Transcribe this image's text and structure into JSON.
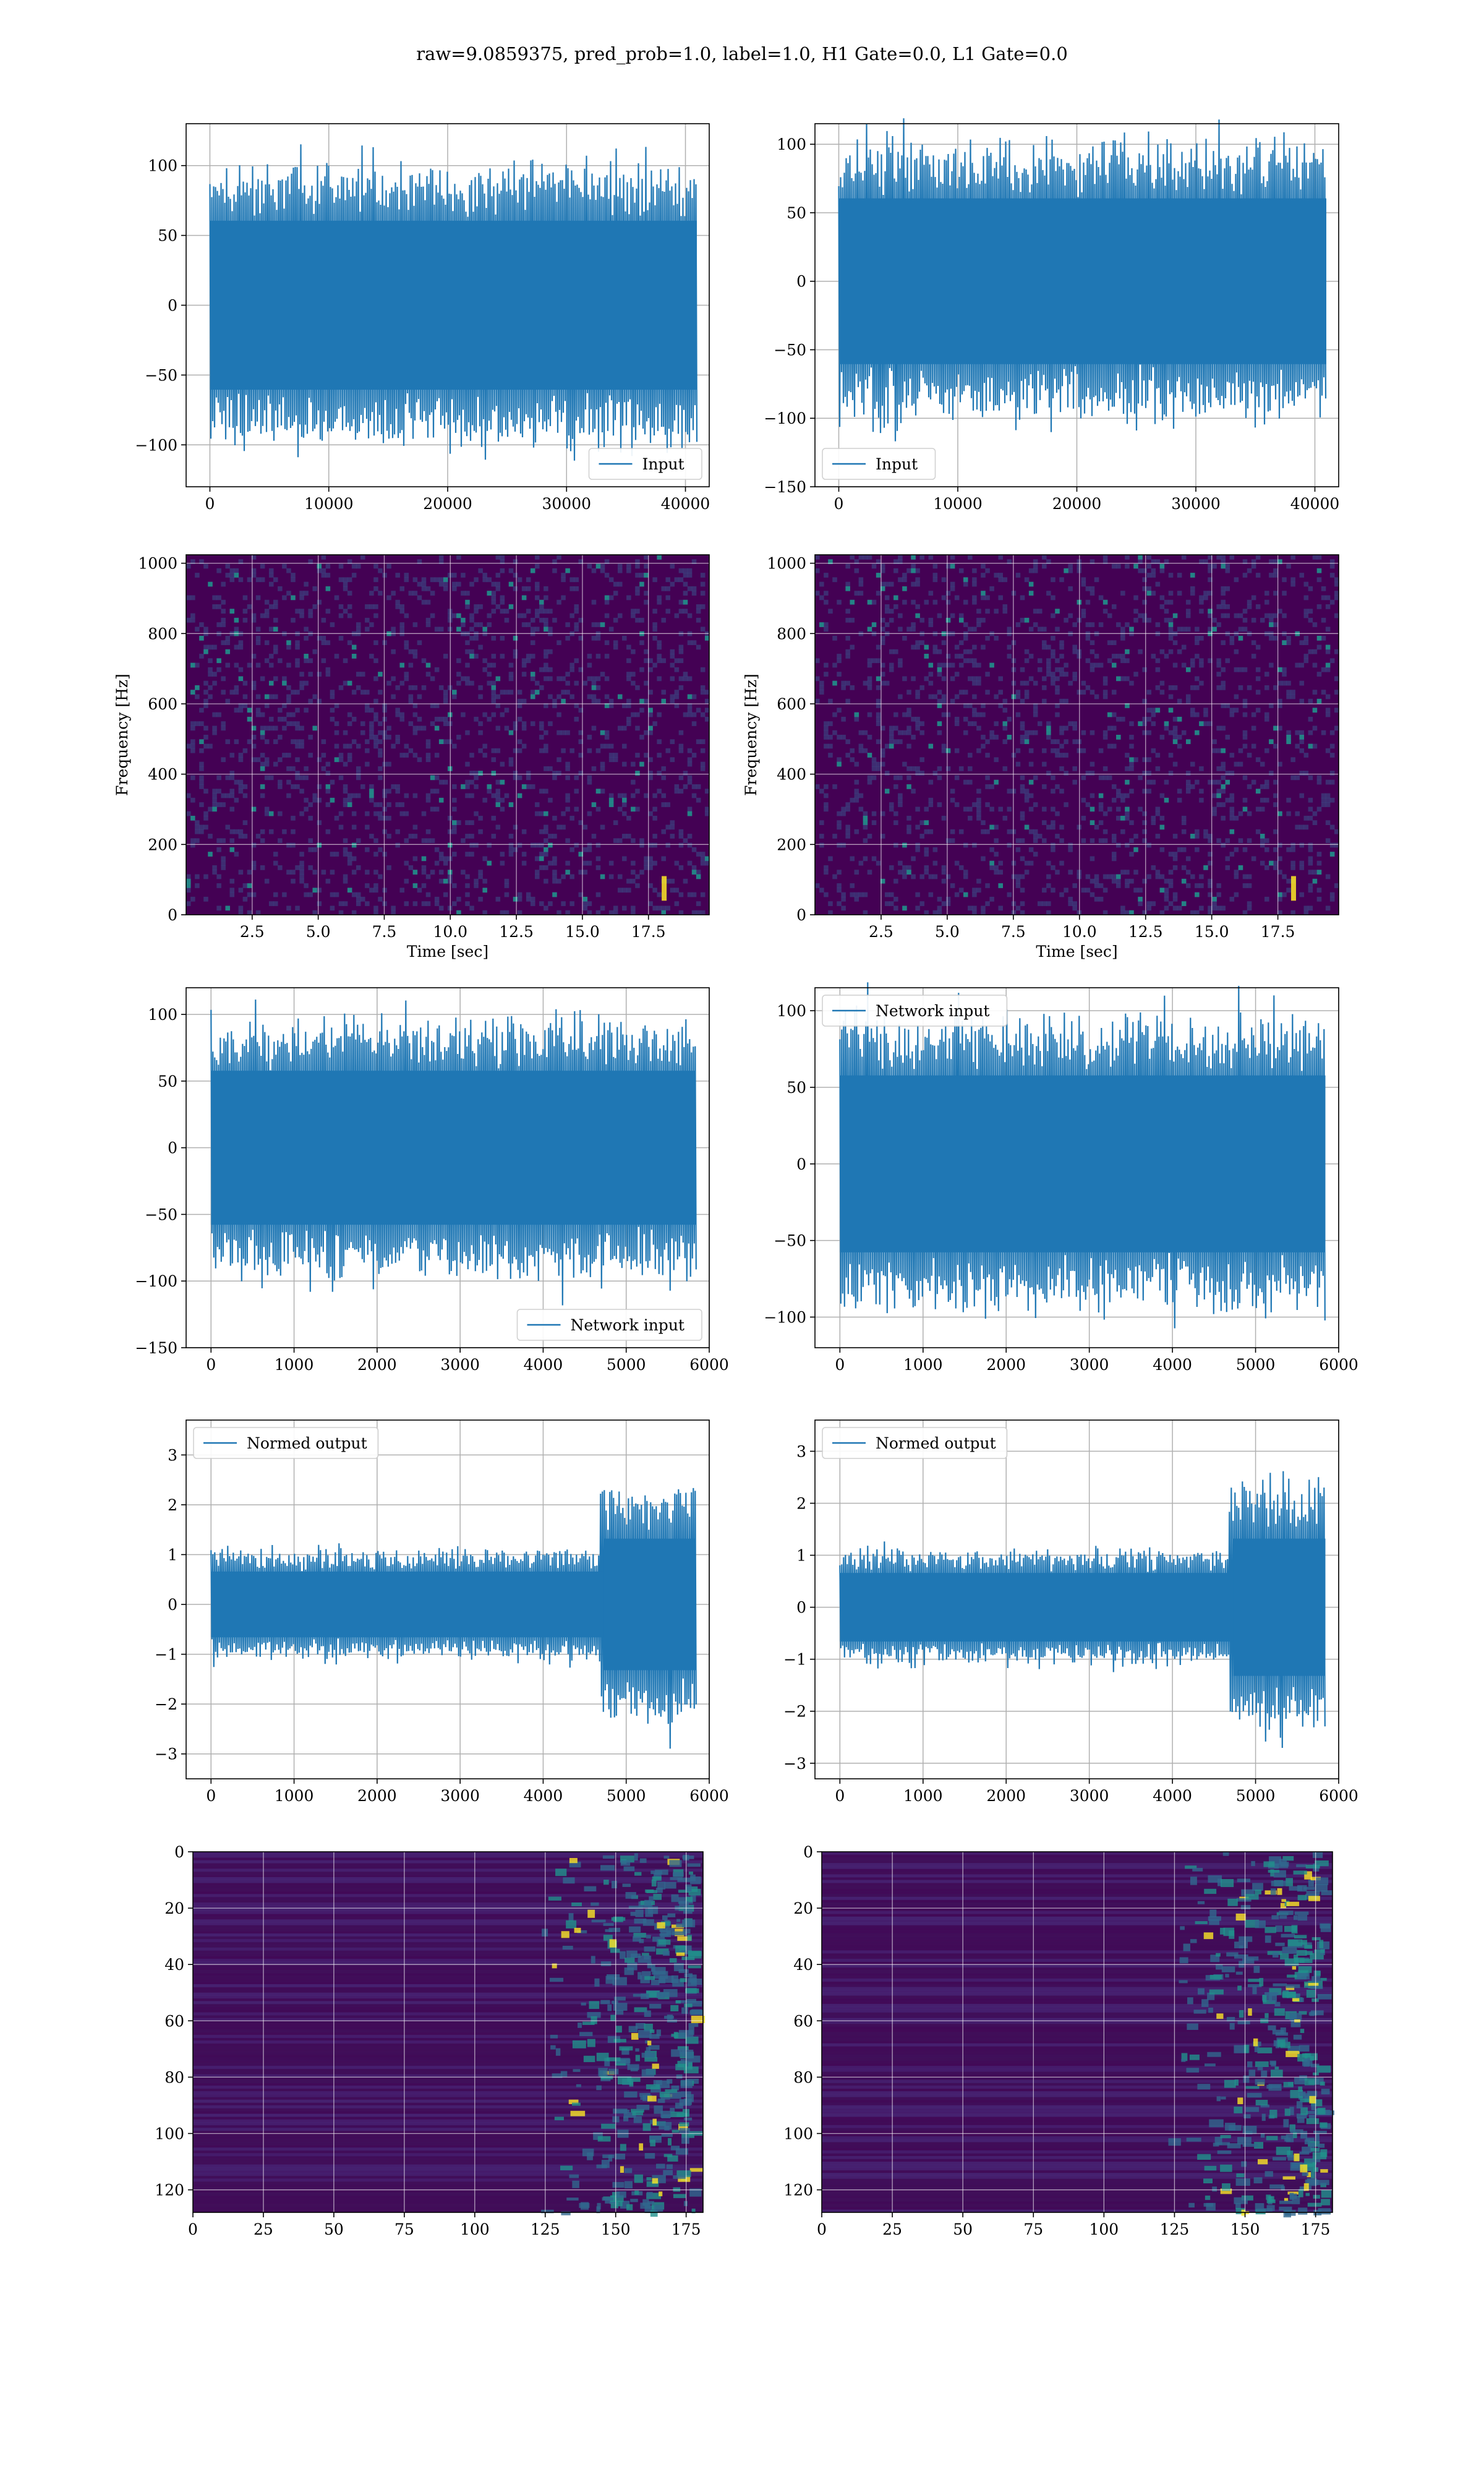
{
  "figure_title": "raw=9.0859375, pred_prob=1.0, label=1.0, H1 Gate=0.0, L1 Gate=0.0",
  "colors": {
    "line": "#1f77b4",
    "grid": "#b0b0b0",
    "viridis_dark": "#440154",
    "viridis_mid": "#21918c",
    "viridis_bright": "#fde725"
  },
  "chart_data": [
    {
      "id": "input-h1",
      "type": "line",
      "series": [
        {
          "name": "Input",
          "n": 40960,
          "amplitude": 110
        }
      ],
      "xlim": [
        -2000,
        42000
      ],
      "ylim": [
        -130,
        130
      ],
      "xticks": [
        0,
        10000,
        20000,
        30000,
        40000
      ],
      "yticks": [
        -100,
        -50,
        0,
        50,
        100
      ],
      "legend": "lower right",
      "grid": true,
      "xlabel": "",
      "ylabel": ""
    },
    {
      "id": "input-l1",
      "type": "line",
      "series": [
        {
          "name": "Input",
          "n": 40960,
          "amplitude": 110
        }
      ],
      "xlim": [
        -2000,
        42000
      ],
      "ylim": [
        -150,
        115
      ],
      "xticks": [
        0,
        10000,
        20000,
        30000,
        40000
      ],
      "yticks": [
        -150,
        -100,
        -50,
        0,
        50,
        100
      ],
      "legend": "lower left",
      "grid": true,
      "xlabel": "",
      "ylabel": ""
    },
    {
      "id": "spec-h1",
      "type": "heatmap",
      "xlim": [
        0,
        19.8
      ],
      "ylim": [
        0,
        1024
      ],
      "xticks": [
        2.5,
        5.0,
        7.5,
        10.0,
        12.5,
        15.0,
        17.5
      ],
      "yticks": [
        0,
        200,
        400,
        600,
        800,
        1000
      ],
      "xlabel": "Time [sec]",
      "ylabel": "Frequency [Hz]",
      "grid": true
    },
    {
      "id": "spec-l1",
      "type": "heatmap",
      "xlim": [
        0,
        19.8
      ],
      "ylim": [
        0,
        1024
      ],
      "xticks": [
        2.5,
        5.0,
        7.5,
        10.0,
        12.5,
        15.0,
        17.5
      ],
      "yticks": [
        0,
        200,
        400,
        600,
        800,
        1000
      ],
      "xlabel": "Time [sec]",
      "ylabel": "Frequency [Hz]",
      "grid": true
    },
    {
      "id": "netin-h1",
      "type": "line",
      "series": [
        {
          "name": "Network input",
          "n": 5840,
          "amplitude": 105
        }
      ],
      "xlim": [
        -300,
        6000
      ],
      "ylim": [
        -150,
        120
      ],
      "xticks": [
        0,
        1000,
        2000,
        3000,
        4000,
        5000,
        6000
      ],
      "yticks": [
        -150,
        -100,
        -50,
        0,
        50,
        100
      ],
      "legend": "lower right",
      "grid": true,
      "xlabel": "",
      "ylabel": ""
    },
    {
      "id": "netin-l1",
      "type": "line",
      "series": [
        {
          "name": "Network input",
          "n": 5840,
          "amplitude": 105
        }
      ],
      "xlim": [
        -300,
        6000
      ],
      "ylim": [
        -120,
        115
      ],
      "xticks": [
        0,
        1000,
        2000,
        3000,
        4000,
        5000,
        6000
      ],
      "yticks": [
        -100,
        -50,
        0,
        50,
        100
      ],
      "legend": "upper left",
      "grid": true,
      "xlabel": "",
      "ylabel": ""
    },
    {
      "id": "normed-h1",
      "type": "line",
      "series": [
        {
          "name": "Normed output",
          "n": 5840,
          "amplitude": 1.2
        }
      ],
      "xlim": [
        -300,
        6000
      ],
      "ylim": [
        -3.5,
        3.7
      ],
      "xticks": [
        0,
        1000,
        2000,
        3000,
        4000,
        5000,
        6000
      ],
      "yticks": [
        -3,
        -2,
        -1,
        0,
        1,
        2,
        3
      ],
      "legend": "upper left",
      "grid": true,
      "xlabel": "",
      "ylabel": ""
    },
    {
      "id": "normed-l1",
      "type": "line",
      "series": [
        {
          "name": "Normed output",
          "n": 5840,
          "amplitude": 1.2
        }
      ],
      "xlim": [
        -300,
        6000
      ],
      "ylim": [
        -3.3,
        3.6
      ],
      "xticks": [
        0,
        1000,
        2000,
        3000,
        4000,
        5000,
        6000
      ],
      "yticks": [
        -3,
        -2,
        -1,
        0,
        1,
        2,
        3
      ],
      "legend": "upper left",
      "grid": true,
      "xlabel": "",
      "ylabel": ""
    },
    {
      "id": "qmap-h1",
      "type": "heatmap",
      "xlim": [
        0,
        181
      ],
      "ylim": [
        128,
        0
      ],
      "xticks": [
        0,
        25,
        50,
        75,
        100,
        125,
        150,
        175
      ],
      "yticks": [
        0,
        20,
        40,
        60,
        80,
        100,
        120
      ],
      "xlabel": "",
      "ylabel": "",
      "grid": true
    },
    {
      "id": "qmap-l1",
      "type": "heatmap",
      "xlim": [
        0,
        181
      ],
      "ylim": [
        128,
        0
      ],
      "xticks": [
        0,
        25,
        50,
        75,
        100,
        125,
        150,
        175
      ],
      "yticks": [
        0,
        20,
        40,
        60,
        80,
        100,
        120
      ],
      "xlabel": "",
      "ylabel": "",
      "grid": true
    }
  ]
}
